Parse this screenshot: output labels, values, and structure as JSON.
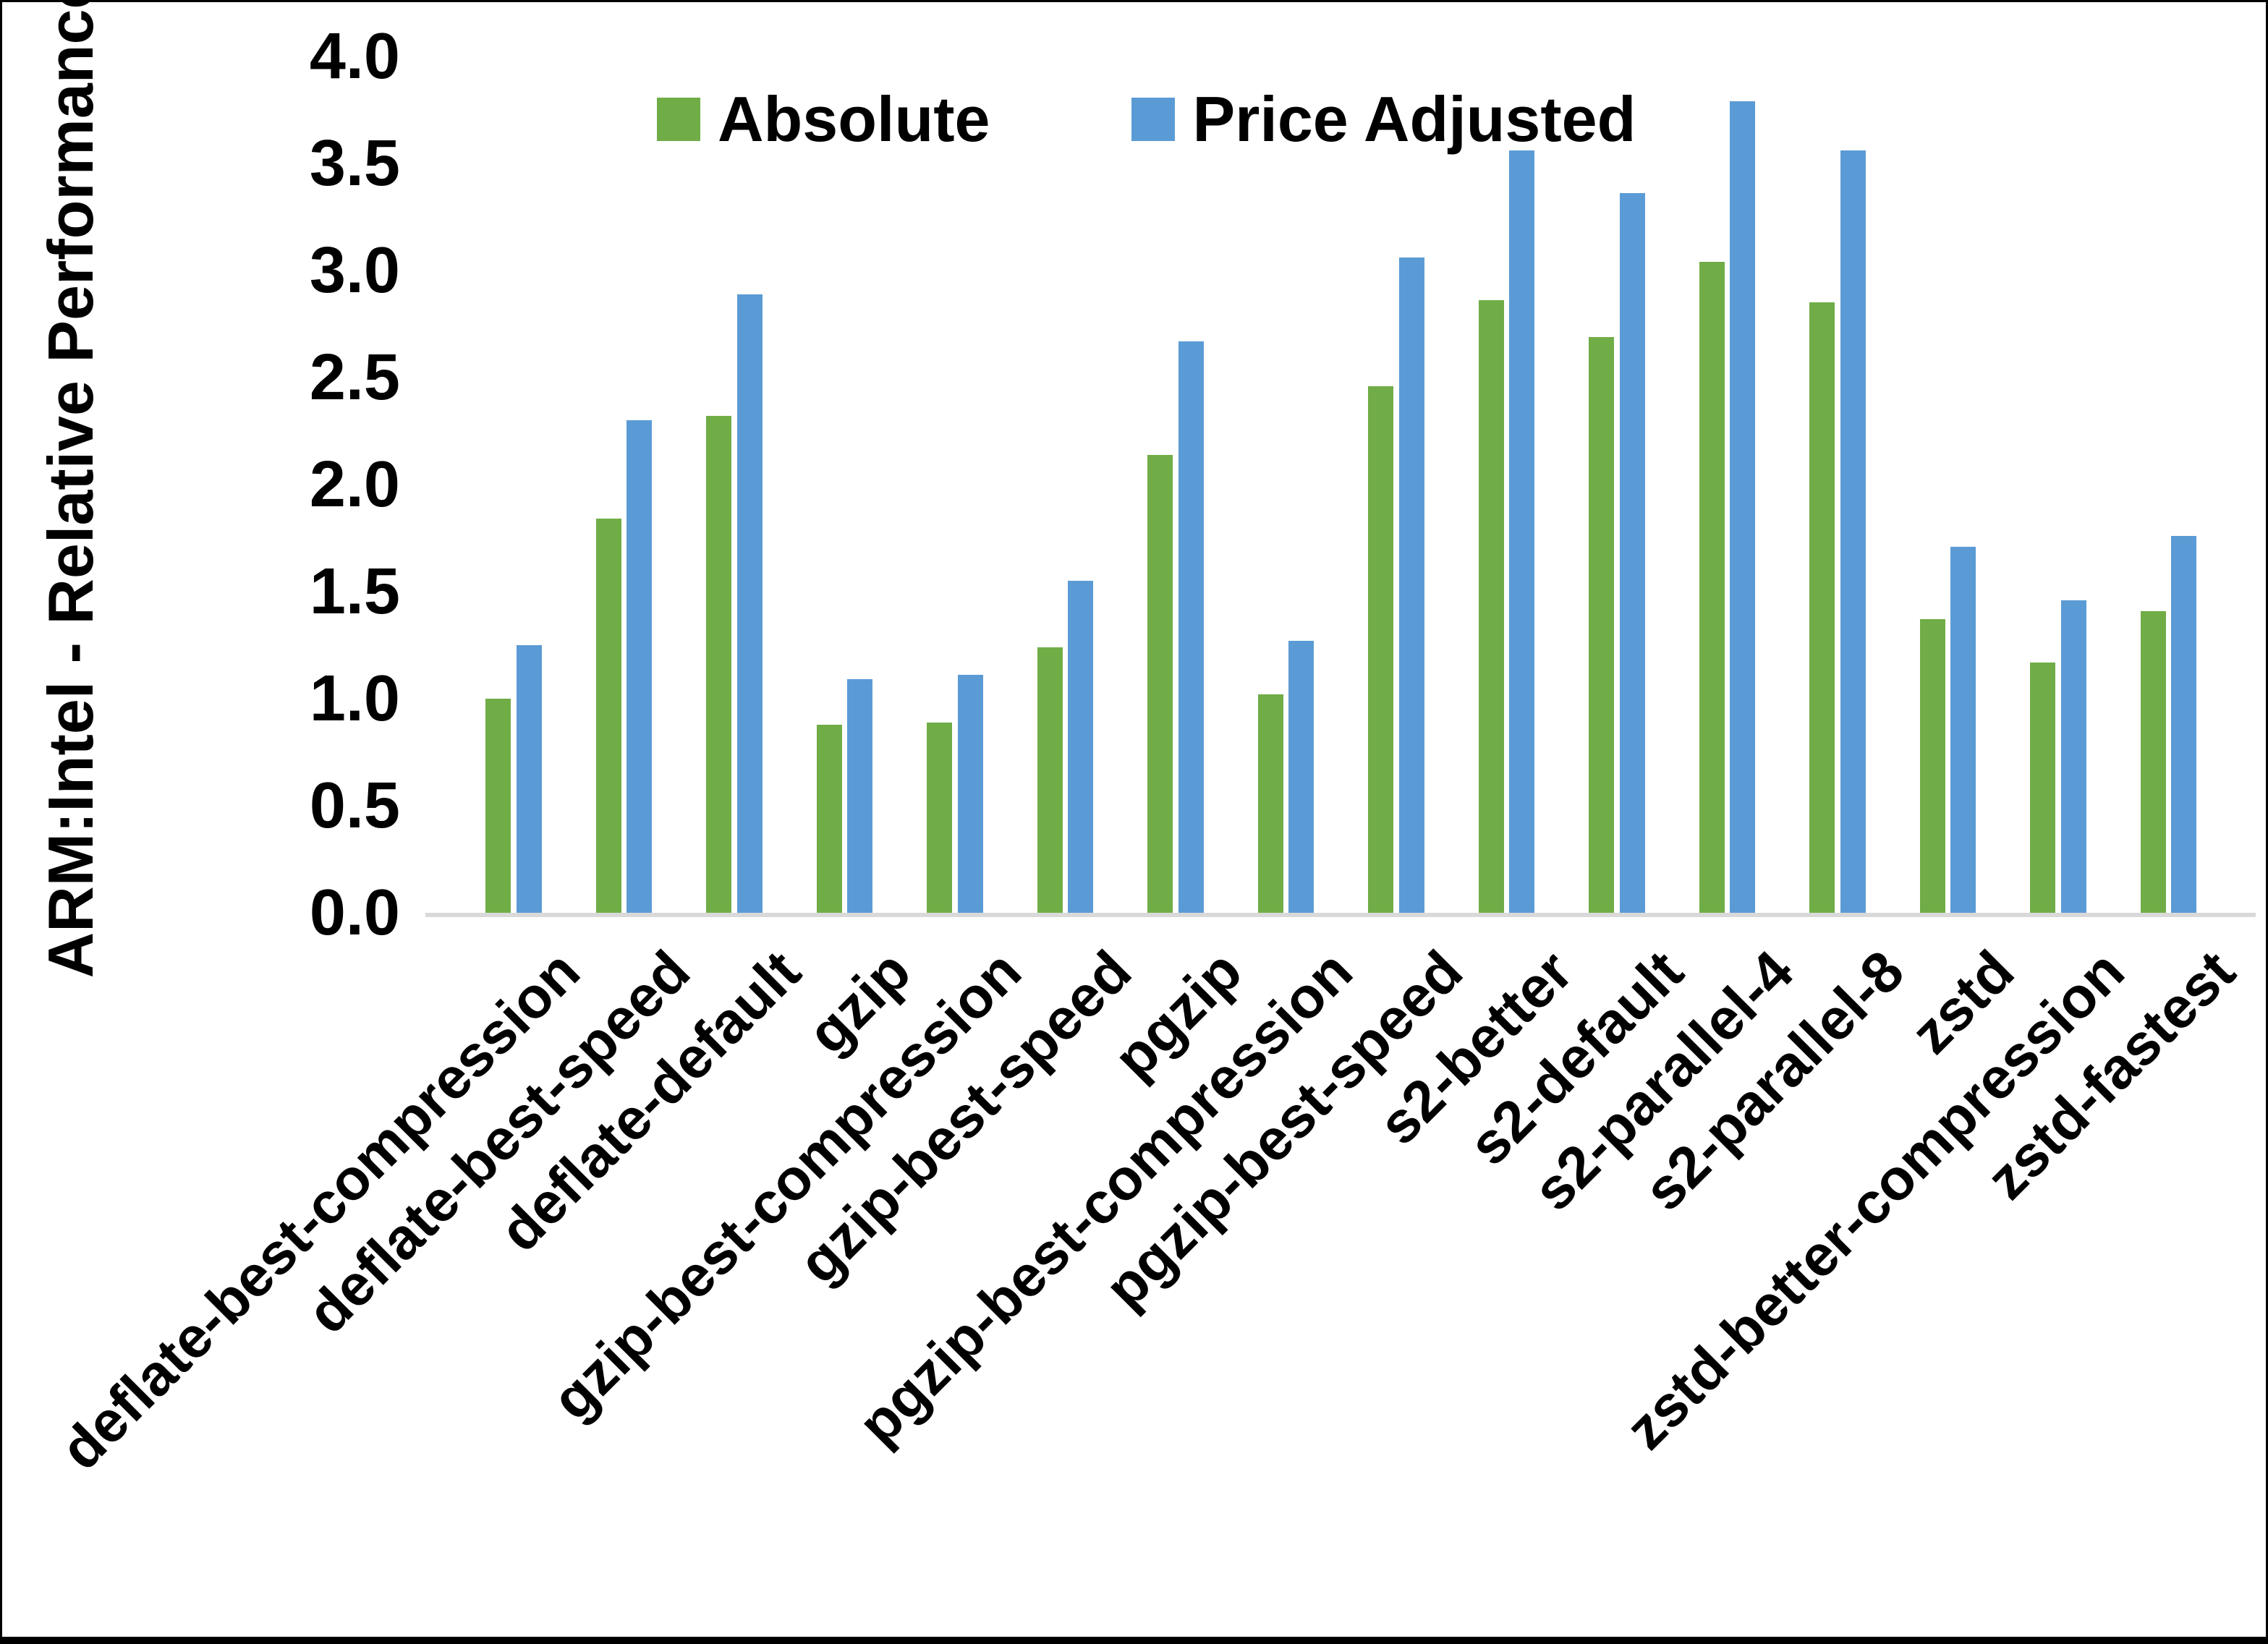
{
  "chart_data": {
    "type": "bar",
    "title": "",
    "xlabel": "",
    "ylabel": "ARM:Intel - Relative Performance",
    "ylim": [
      0.0,
      4.0
    ],
    "ytick_step": 0.5,
    "ytick_labels": [
      "4.0",
      "3.5",
      "3.0",
      "2.5",
      "2.0",
      "1.5",
      "1.0",
      "0.5",
      "0.0"
    ],
    "grid": false,
    "legend_position": "top-center",
    "categories": [
      "deflate-best-compression",
      "deflate-best-speed",
      "deflate-default",
      "gzip",
      "gzip-best-compression",
      "gzip-best-speed",
      "pgzip",
      "pgzip-best-compression",
      "pgzip-best-speed",
      "s2-better",
      "s2-default",
      "s2-parallel-4",
      "s2-parallel-8",
      "zstd",
      "zstd-better-compression",
      "zstd-fastest"
    ],
    "series": [
      {
        "name": "Absolute",
        "color": "#70AD47",
        "values": [
          1.0,
          1.84,
          2.32,
          0.88,
          0.89,
          1.24,
          2.14,
          1.02,
          2.46,
          2.86,
          2.69,
          3.04,
          2.85,
          1.37,
          1.17,
          1.41
        ]
      },
      {
        "name": "Price Adjusted",
        "color": "#5B9BD5",
        "values": [
          1.25,
          2.3,
          2.89,
          1.09,
          1.11,
          1.55,
          2.67,
          1.27,
          3.06,
          3.56,
          3.36,
          3.79,
          3.56,
          1.71,
          1.46,
          1.76
        ]
      }
    ]
  },
  "colors": {
    "axis_line": "#d9d9d9",
    "text": "#000000",
    "background": "#ffffff",
    "frame_border": "#000000"
  }
}
